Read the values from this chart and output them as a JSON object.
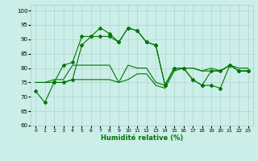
{
  "xlabel": "Humidité relative (%)",
  "background_color": "#cceee8",
  "grid_color": "#aacccc",
  "line_color": "#007700",
  "xlim": [
    -0.5,
    23.5
  ],
  "ylim": [
    60,
    102
  ],
  "yticks": [
    60,
    65,
    70,
    75,
    80,
    85,
    90,
    95,
    100
  ],
  "xticks": [
    0,
    1,
    2,
    3,
    4,
    5,
    6,
    7,
    8,
    9,
    10,
    11,
    12,
    13,
    14,
    15,
    16,
    17,
    18,
    19,
    20,
    21,
    22,
    23
  ],
  "line1_x": [
    0,
    1,
    2,
    3,
    4,
    5,
    6,
    7,
    8,
    9,
    10,
    11,
    12,
    13,
    14,
    15,
    16,
    17,
    18,
    19,
    20,
    21,
    22,
    23
  ],
  "line1_y": [
    72,
    68,
    75,
    81,
    82,
    91,
    91,
    94,
    92,
    89,
    94,
    93,
    89,
    88,
    74,
    80,
    80,
    76,
    74,
    79,
    79,
    81,
    79,
    79
  ],
  "line2_x": [
    0,
    1,
    2,
    3,
    4,
    5,
    6,
    7,
    8,
    9,
    10,
    11,
    12,
    13,
    14,
    15,
    16,
    17,
    18,
    19,
    20,
    21,
    22,
    23
  ],
  "line2_y": [
    75,
    75,
    76,
    76,
    81,
    81,
    81,
    81,
    81,
    75,
    81,
    80,
    80,
    75,
    74,
    80,
    80,
    80,
    79,
    80,
    79,
    81,
    80,
    80
  ],
  "line3_x": [
    0,
    1,
    2,
    3,
    4,
    5,
    6,
    7,
    8,
    9,
    10,
    11,
    12,
    13,
    14,
    15,
    16,
    17,
    18,
    19,
    20,
    21,
    22,
    23
  ],
  "line3_y": [
    75,
    75,
    75,
    75,
    76,
    76,
    76,
    76,
    76,
    75,
    76,
    78,
    78,
    74,
    73,
    79,
    80,
    80,
    79,
    79,
    79,
    81,
    79,
    79
  ],
  "line4_x": [
    2,
    3,
    4,
    5,
    6,
    7,
    8,
    9,
    10,
    11,
    12,
    13,
    14,
    15,
    16,
    17,
    18,
    19,
    20,
    21,
    22,
    23
  ],
  "line4_y": [
    75,
    75,
    76,
    88,
    91,
    91,
    91,
    89,
    94,
    93,
    89,
    88,
    74,
    80,
    80,
    76,
    74,
    74,
    73,
    81,
    79,
    79
  ]
}
